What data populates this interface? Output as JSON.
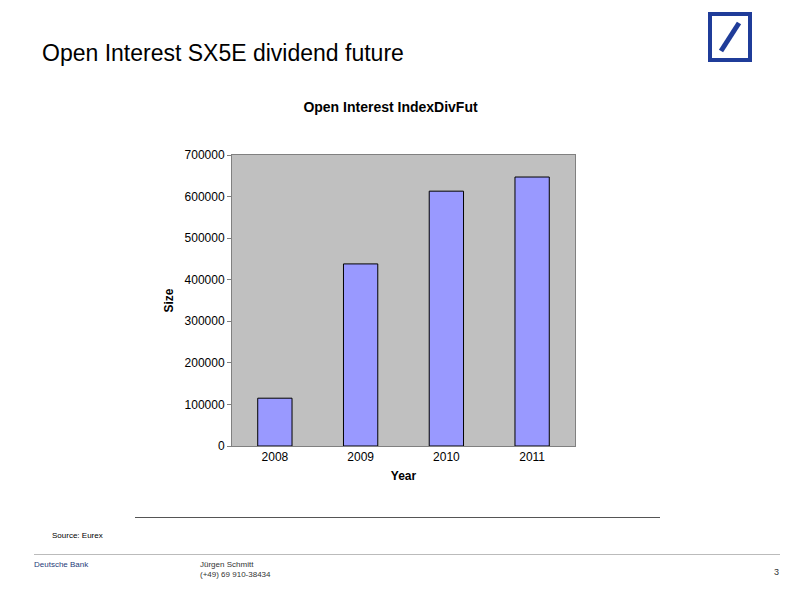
{
  "chart_data": {
    "type": "bar",
    "title": "Open Interest IndexDivFut",
    "x_label": "Year",
    "y_label": "Size",
    "categories": [
      "2008",
      "2009",
      "2010",
      "2011"
    ],
    "values": [
      115000,
      438000,
      613000,
      647000
    ],
    "color": "#9999ff",
    "ylim": [
      0,
      700000
    ],
    "yticks": [
      0,
      100000,
      200000,
      300000,
      400000,
      500000,
      600000,
      700000
    ],
    "grid": false
  },
  "page": {
    "heading": "Open Interest SX5E dividend future",
    "source": "Source: Eurex",
    "footer": {
      "company": "Deutsche Bank",
      "author": "Jürgen Schmitt",
      "phone": "(+49) 69 910-38434",
      "page": "3"
    }
  }
}
